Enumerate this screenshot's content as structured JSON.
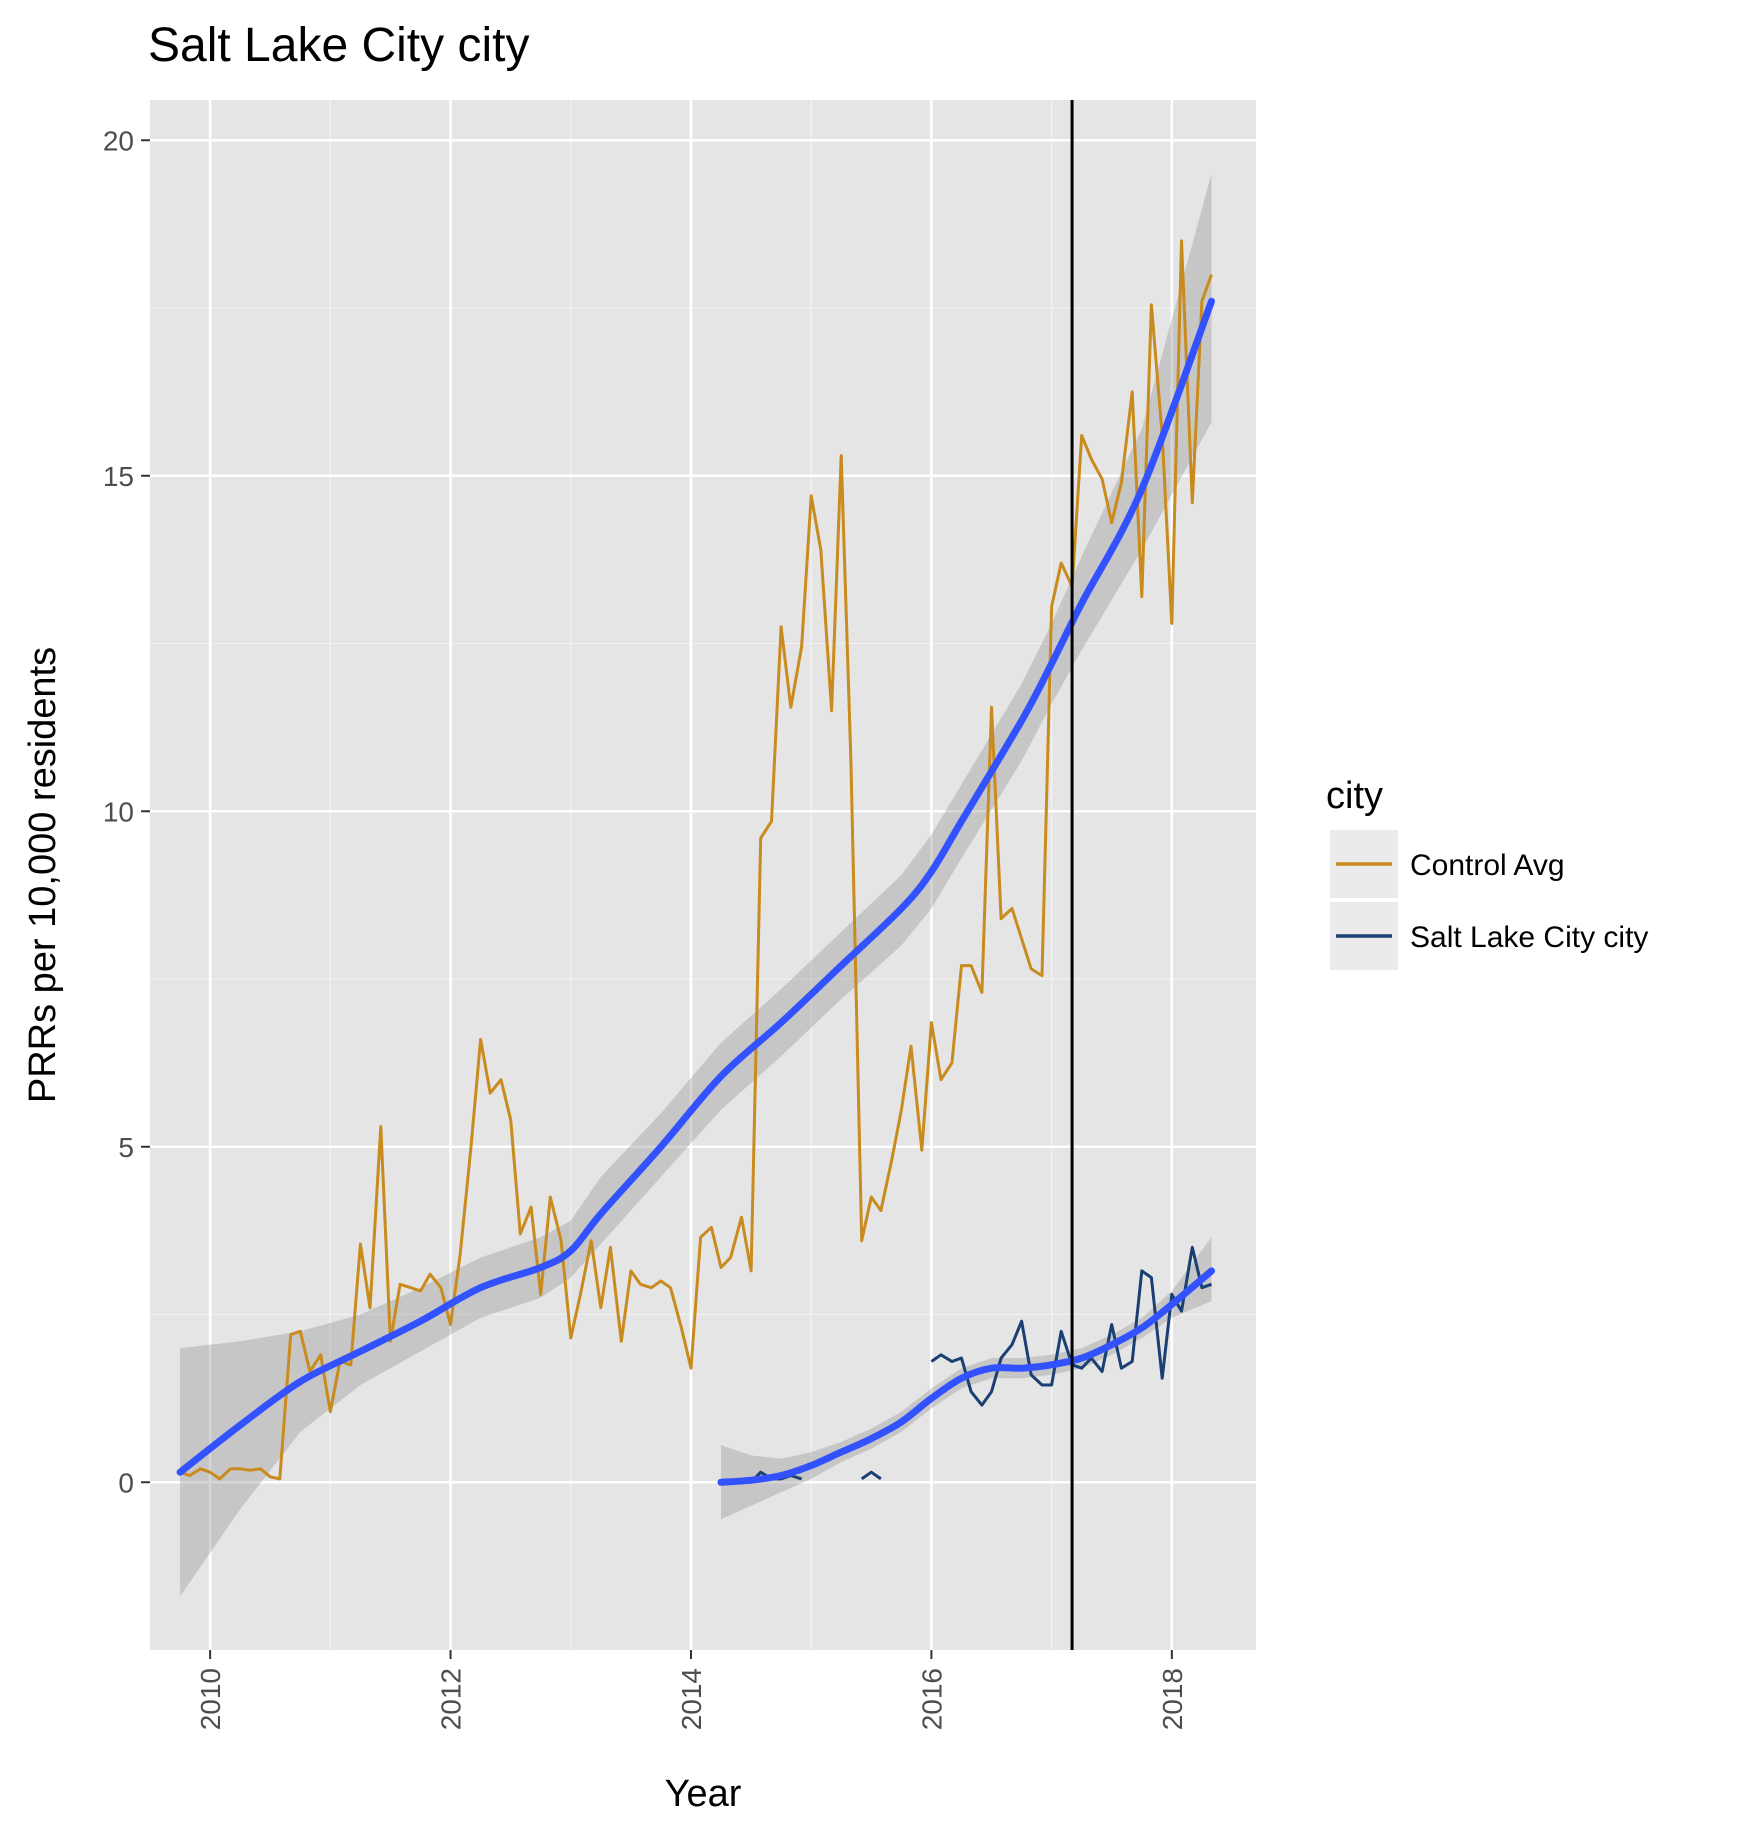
{
  "chart_data": {
    "type": "line",
    "title": "Salt Lake City city",
    "xlabel": "Year",
    "ylabel": "PRRs per 10,000 residents",
    "xlim": [
      2009.5,
      2018.7
    ],
    "ylim": [
      -2.5,
      20.6
    ],
    "x_ticks": [
      "2010",
      "2012",
      "2014",
      "2016",
      "2018"
    ],
    "y_ticks": [
      "0",
      "5",
      "10",
      "15",
      "20"
    ],
    "grid": true,
    "vertical_line_x": 2017.17,
    "legend": {
      "title": "city",
      "position": "right",
      "entries": [
        "Control Avg",
        "Salt Lake City city"
      ]
    },
    "colors": {
      "control": "#c98b1e",
      "city": "#1a3f73",
      "smooth": "#3352ff",
      "ribbon": "#bdbdbd",
      "panel": "#e5e5e5"
    },
    "series": [
      {
        "name": "Control Avg",
        "x": [
          2009.75,
          2009.83,
          2009.92,
          2010.0,
          2010.08,
          2010.17,
          2010.25,
          2010.33,
          2010.42,
          2010.5,
          2010.58,
          2010.67,
          2010.75,
          2010.83,
          2010.92,
          2011.0,
          2011.08,
          2011.17,
          2011.25,
          2011.33,
          2011.42,
          2011.5,
          2011.58,
          2011.67,
          2011.75,
          2011.83,
          2011.92,
          2012.0,
          2012.08,
          2012.17,
          2012.25,
          2012.33,
          2012.42,
          2012.5,
          2012.58,
          2012.67,
          2012.75,
          2012.83,
          2012.92,
          2013.0,
          2013.08,
          2013.17,
          2013.25,
          2013.33,
          2013.42,
          2013.5,
          2013.58,
          2013.67,
          2013.75,
          2013.83,
          2013.92,
          2014.0,
          2014.08,
          2014.17,
          2014.25,
          2014.33,
          2014.42,
          2014.5,
          2014.58,
          2014.67,
          2014.75,
          2014.83,
          2014.92,
          2015.0,
          2015.08,
          2015.17,
          2015.25,
          2015.33,
          2015.42,
          2015.5,
          2015.58,
          2015.67,
          2015.75,
          2015.83,
          2015.92,
          2016.0,
          2016.08,
          2016.17,
          2016.25,
          2016.33,
          2016.42,
          2016.5,
          2016.58,
          2016.67,
          2016.75,
          2016.83,
          2016.92,
          2017.0,
          2017.08,
          2017.17,
          2017.25,
          2017.33,
          2017.42,
          2017.5,
          2017.58,
          2017.67,
          2017.75,
          2017.83,
          2017.92,
          2018.0,
          2018.08,
          2018.17,
          2018.25,
          2018.33
        ],
        "values": [
          0.15,
          0.1,
          0.2,
          0.15,
          0.05,
          0.2,
          0.2,
          0.18,
          0.2,
          0.08,
          0.05,
          2.2,
          2.25,
          1.65,
          1.9,
          1.05,
          1.8,
          1.75,
          3.55,
          2.6,
          5.3,
          2.1,
          2.95,
          2.9,
          2.85,
          3.1,
          2.9,
          2.35,
          3.4,
          5.0,
          6.6,
          5.8,
          6.0,
          5.4,
          3.7,
          4.1,
          2.8,
          4.25,
          3.6,
          2.15,
          2.8,
          3.6,
          2.6,
          3.5,
          2.1,
          3.15,
          2.95,
          2.9,
          3.0,
          2.9,
          2.3,
          1.7,
          3.65,
          3.8,
          3.2,
          3.35,
          3.95,
          3.15,
          9.6,
          9.85,
          12.75,
          11.55,
          12.45,
          14.7,
          13.9,
          11.5,
          15.3,
          10.75,
          3.6,
          4.25,
          4.05,
          4.8,
          5.55,
          6.5,
          4.95,
          6.85,
          6.0,
          6.25,
          7.7,
          7.7,
          7.3,
          11.55,
          8.4,
          8.55,
          8.1,
          7.65,
          7.55,
          13.05,
          13.7,
          13.35,
          15.6,
          15.25,
          14.95,
          14.3,
          14.9,
          16.25,
          13.2,
          17.55,
          15.6,
          12.8,
          18.5,
          14.6,
          17.6,
          18.0
        ]
      },
      {
        "name": "Salt Lake City city",
        "x": [
          2014.25,
          2014.33,
          2014.42,
          2014.5,
          2014.58,
          2014.67,
          2014.75,
          2014.83,
          2014.92,
          null,
          2015.42,
          2015.5,
          2015.58,
          null,
          2016.0,
          2016.08,
          2016.17,
          2016.25,
          2016.33,
          2016.42,
          2016.5,
          2016.58,
          2016.67,
          2016.75,
          2016.83,
          2016.92,
          2017.0,
          2017.08,
          2017.17,
          2017.25,
          2017.33,
          2017.42,
          2017.5,
          2017.58,
          2017.67,
          2017.75,
          2017.83,
          2017.92,
          2018.0,
          2018.08,
          2018.17,
          2018.25,
          2018.33
        ],
        "values": [
          0.0,
          0.0,
          0.0,
          0.0,
          0.15,
          0.05,
          0.05,
          0.1,
          0.05,
          null,
          0.05,
          0.15,
          0.05,
          null,
          1.8,
          1.9,
          1.8,
          1.85,
          1.35,
          1.15,
          1.35,
          1.85,
          2.05,
          2.4,
          1.6,
          1.45,
          1.45,
          2.25,
          1.75,
          1.7,
          1.85,
          1.65,
          2.35,
          1.7,
          1.8,
          3.15,
          3.05,
          1.55,
          2.8,
          2.55,
          3.5,
          2.9,
          2.95
        ]
      }
    ],
    "smooth_fits": [
      {
        "name": "Control Avg",
        "x": [
          2009.75,
          2010.25,
          2010.75,
          2011.25,
          2011.75,
          2012.25,
          2012.75,
          2013.0,
          2013.25,
          2013.75,
          2014.25,
          2014.75,
          2015.25,
          2015.75,
          2016.0,
          2016.25,
          2016.75,
          2017.0,
          2017.25,
          2017.75,
          2018.33
        ],
        "fit": [
          0.15,
          0.85,
          1.5,
          1.95,
          2.4,
          2.9,
          3.2,
          3.45,
          4.0,
          5.0,
          6.05,
          6.85,
          7.7,
          8.55,
          9.1,
          9.85,
          11.35,
          12.2,
          13.1,
          14.8,
          17.6
        ],
        "lower": [
          -1.7,
          -0.4,
          0.75,
          1.45,
          1.95,
          2.45,
          2.75,
          3.05,
          3.55,
          4.55,
          5.55,
          6.35,
          7.2,
          8.0,
          8.55,
          9.3,
          10.75,
          11.6,
          12.4,
          13.9,
          15.8
        ],
        "upper": [
          2.0,
          2.1,
          2.25,
          2.5,
          2.9,
          3.35,
          3.65,
          3.9,
          4.55,
          5.5,
          6.55,
          7.35,
          8.2,
          9.05,
          9.65,
          10.4,
          11.9,
          12.8,
          13.8,
          15.7,
          19.5
        ]
      },
      {
        "name": "Salt Lake City city",
        "x": [
          2014.25,
          2014.5,
          2014.75,
          2015.0,
          2015.25,
          2015.5,
          2015.75,
          2016.0,
          2016.25,
          2016.5,
          2016.75,
          2017.0,
          2017.25,
          2017.5,
          2017.75,
          2018.0,
          2018.33
        ],
        "fit": [
          0.0,
          0.03,
          0.1,
          0.25,
          0.45,
          0.65,
          0.9,
          1.25,
          1.55,
          1.7,
          1.7,
          1.75,
          1.85,
          2.05,
          2.3,
          2.65,
          3.15
        ],
        "lower": [
          -0.55,
          -0.35,
          -0.15,
          0.05,
          0.3,
          0.5,
          0.75,
          1.1,
          1.4,
          1.55,
          1.55,
          1.6,
          1.7,
          1.9,
          2.15,
          2.45,
          2.7
        ],
        "upper": [
          0.55,
          0.4,
          0.35,
          0.45,
          0.6,
          0.8,
          1.05,
          1.4,
          1.7,
          1.85,
          1.85,
          1.9,
          2.0,
          2.2,
          2.45,
          2.85,
          3.65
        ]
      }
    ]
  }
}
